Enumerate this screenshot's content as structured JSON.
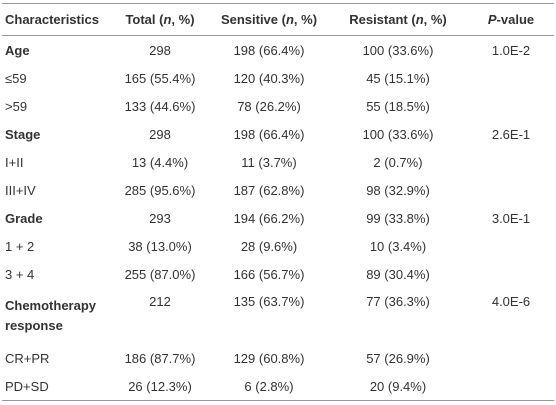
{
  "table": {
    "header": [
      [
        {
          "text": "Characteristics"
        }
      ],
      [
        {
          "text": "Total ("
        },
        {
          "text": "n",
          "italic": true
        },
        {
          "text": ", %)"
        }
      ],
      [
        {
          "text": "Sensitive ("
        },
        {
          "text": "n",
          "italic": true
        },
        {
          "text": ", %)"
        }
      ],
      [
        {
          "text": "Resistant ("
        },
        {
          "text": "n",
          "italic": true
        },
        {
          "text": ", %)"
        }
      ],
      [
        {
          "text": "P",
          "italic": true
        },
        {
          "text": "-value"
        }
      ]
    ],
    "rows": [
      {
        "label": "Age",
        "bold": true,
        "cells": [
          "298",
          "198 (66.4%)",
          "100 (33.6%)",
          "1.0E-2"
        ]
      },
      {
        "label": "≤59",
        "cells": [
          "165 (55.4%)",
          "120 (40.3%)",
          "45 (15.1%)"
        ]
      },
      {
        "label": ">59",
        "cells": [
          "133 (44.6%)",
          "78 (26.2%)",
          "55 (18.5%)"
        ]
      },
      {
        "label": "Stage",
        "bold": true,
        "cells": [
          "298",
          "198 (66.4%)",
          "100 (33.6%)",
          "2.6E-1"
        ]
      },
      {
        "label": "I+II",
        "cells": [
          "13 (4.4%)",
          "11 (3.7%)",
          "2 (0.7%)"
        ]
      },
      {
        "label": "III+IV",
        "cells": [
          "285 (95.6%)",
          "187 (62.8%)",
          "98 (32.9%)"
        ]
      },
      {
        "label": "Grade",
        "bold": true,
        "cells": [
          "293",
          "194 (66.2%)",
          "99 (33.8%)",
          "3.0E-1"
        ]
      },
      {
        "label": "1 + 2",
        "cells": [
          "38 (13.0%)",
          "28 (9.6%)",
          "10 (3.4%)"
        ]
      },
      {
        "label": "3 + 4",
        "cells": [
          "255 (87.0%)",
          "166 (56.7%)",
          "89 (30.4%)"
        ]
      },
      {
        "label": "Chemotherapy response",
        "bold": true,
        "cells": [
          "212",
          "135 (63.7%)",
          "77 (36.3%)",
          "4.0E-6"
        ]
      },
      {
        "label": "CR+PR",
        "cells": [
          "186 (87.7%)",
          "129 (60.8%)",
          "57 (26.9%)"
        ]
      },
      {
        "label": "PD+SD",
        "cells": [
          "26 (12.3%)",
          "6 (2.8%)",
          "20 (9.4%)"
        ]
      }
    ]
  }
}
